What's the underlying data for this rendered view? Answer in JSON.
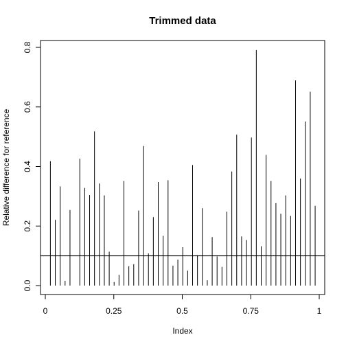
{
  "chart_data": {
    "type": "bar",
    "style": "vertical-lines",
    "title": "Trimmed data",
    "xlabel": "Index",
    "ylabel": "Relative difference for reference",
    "xlim": [
      0,
      1
    ],
    "ylim": [
      0,
      0.8
    ],
    "x_ticks": [
      0,
      0.25,
      0.5,
      0.75,
      1
    ],
    "x_tick_labels": [
      "0",
      "0.25",
      "0.5",
      "0.75",
      "1"
    ],
    "y_ticks": [
      0,
      0.2,
      0.4,
      0.6,
      0.8
    ],
    "y_tick_labels": [
      "0.0",
      "0.2",
      "0.4",
      "0.6",
      "0.8"
    ],
    "reference_line": 0.1,
    "grid": false,
    "x": [
      0.0185,
      0.0364,
      0.0543,
      0.0722,
      0.0901,
      0.108,
      0.1259,
      0.1438,
      0.1617,
      0.1796,
      0.1975,
      0.2154,
      0.2333,
      0.2512,
      0.2691,
      0.287,
      0.3049,
      0.3228,
      0.3407,
      0.3586,
      0.3765,
      0.3944,
      0.4123,
      0.4302,
      0.4481,
      0.466,
      0.4839,
      0.5018,
      0.5197,
      0.5376,
      0.5555,
      0.5734,
      0.5913,
      0.6092,
      0.6271,
      0.645,
      0.6629,
      0.6808,
      0.6987,
      0.7166,
      0.7345,
      0.7524,
      0.7703,
      0.7882,
      0.8061,
      0.824,
      0.8419,
      0.8598,
      0.8777,
      0.8956,
      0.9135,
      0.9314,
      0.9493,
      0.9672,
      0.9851
    ],
    "values": [
      0.418,
      0.221,
      0.333,
      0.016,
      0.254,
      0.0,
      0.426,
      0.328,
      0.304,
      0.518,
      0.343,
      0.303,
      0.114,
      0.012,
      0.036,
      0.351,
      0.065,
      0.072,
      0.252,
      0.469,
      0.108,
      0.23,
      0.348,
      0.167,
      0.354,
      0.067,
      0.087,
      0.129,
      0.05,
      0.405,
      0.102,
      0.26,
      0.018,
      0.163,
      0.098,
      0.063,
      0.248,
      0.383,
      0.507,
      0.165,
      0.153,
      0.497,
      0.791,
      0.132,
      0.439,
      0.351,
      0.277,
      0.241,
      0.303,
      0.234,
      0.689,
      0.359,
      0.551,
      0.651,
      0.268
    ]
  }
}
